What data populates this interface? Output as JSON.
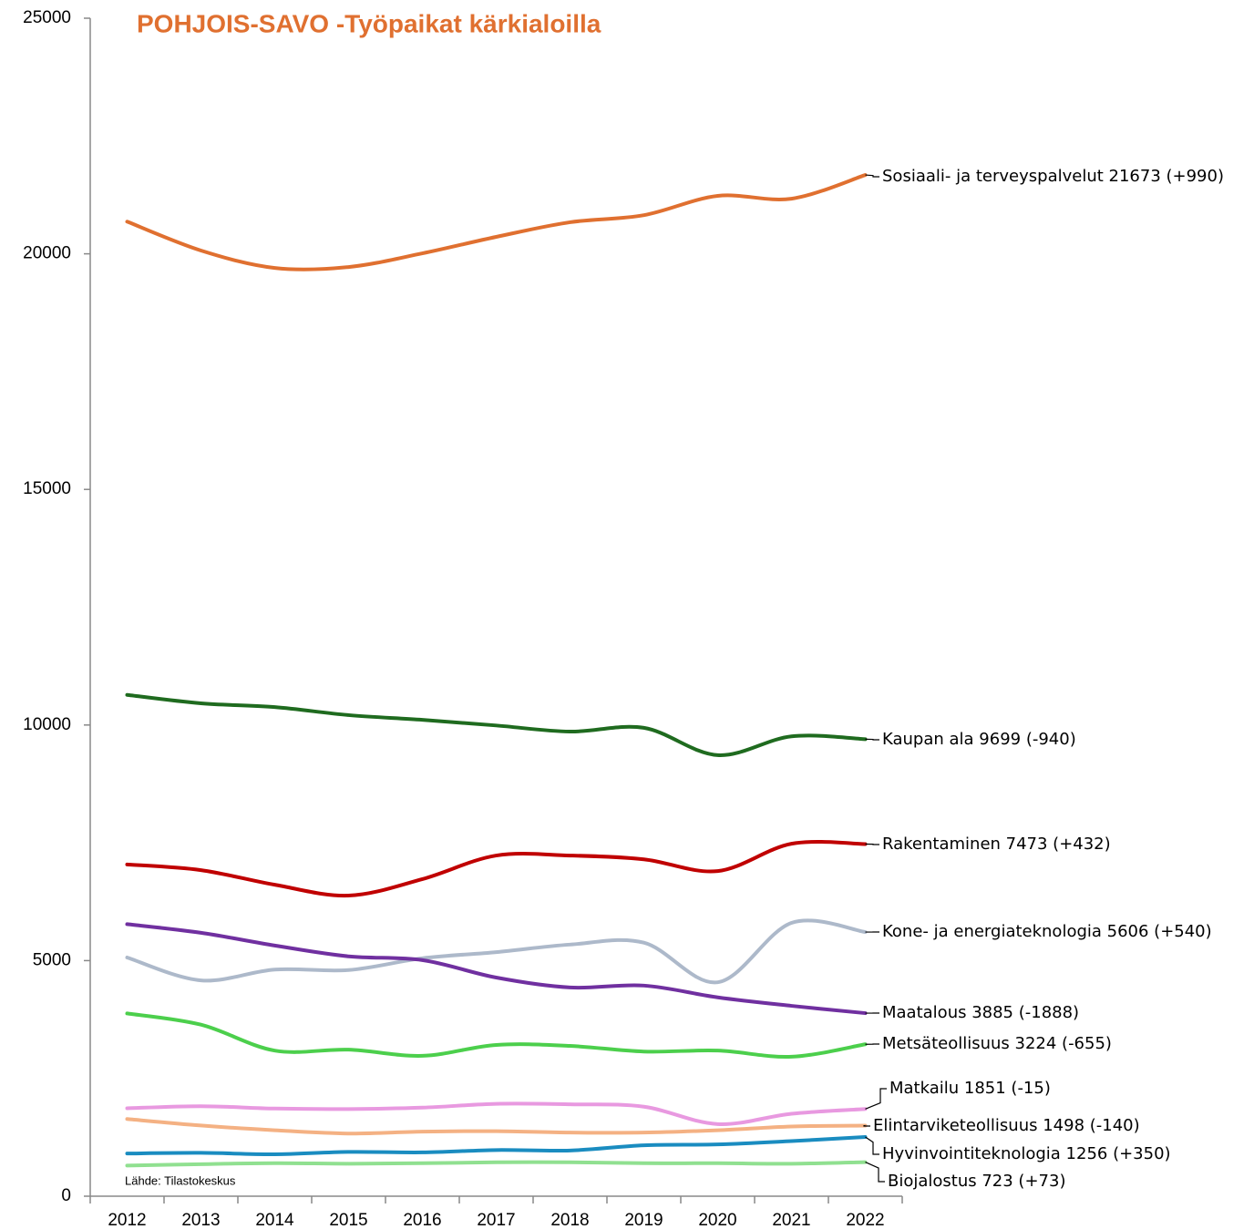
{
  "chart_data": {
    "type": "line",
    "title": "POHJOIS-SAVO -Työpaikat kärkialoilla",
    "source": "Lähde: Tilastokeskus",
    "categories": [
      "2012",
      "2013",
      "2014",
      "2015",
      "2016",
      "2017",
      "2018",
      "2019",
      "2020",
      "2021",
      "2022"
    ],
    "ylim": [
      0,
      25000
    ],
    "yticks": [
      0,
      5000,
      10000,
      15000,
      20000,
      25000
    ],
    "series": [
      {
        "name": "Sosiaali- ja terveyspalvelut 21673 (+990)",
        "color": "#e07030",
        "values": [
          20683,
          20070,
          19700,
          19720,
          20010,
          20360,
          20670,
          20820,
          21230,
          21170,
          21673
        ]
      },
      {
        "name": "Kaupan ala 9699 (-940)",
        "color": "#1f6b1f",
        "values": [
          10639,
          10460,
          10380,
          10210,
          10110,
          9990,
          9860,
          9940,
          9360,
          9760,
          9699
        ]
      },
      {
        "name": "Rakentaminen 7473 (+432)",
        "color": "#c00000",
        "values": [
          7041,
          6920,
          6610,
          6380,
          6730,
          7230,
          7230,
          7150,
          6900,
          7480,
          7473
        ]
      },
      {
        "name": "Kone- ja energiateknologia 5606 (+540)",
        "color": "#adb9ca",
        "values": [
          5066,
          4580,
          4810,
          4800,
          5050,
          5180,
          5340,
          5380,
          4540,
          5800,
          5606
        ]
      },
      {
        "name": "Maatalous 3885 (-1888)",
        "color": "#7030a0",
        "values": [
          5773,
          5590,
          5320,
          5090,
          5010,
          4640,
          4430,
          4470,
          4220,
          4040,
          3885
        ]
      },
      {
        "name": "Metsäteollisuus 3224 (-655)",
        "color": "#4ccf4c",
        "values": [
          3879,
          3640,
          3090,
          3110,
          2980,
          3210,
          3190,
          3070,
          3090,
          2960,
          3224
        ]
      },
      {
        "name": "Matkailu 1851 (-15)",
        "color": "#e899e0",
        "values": [
          1866,
          1910,
          1860,
          1850,
          1880,
          1960,
          1950,
          1900,
          1530,
          1750,
          1851
        ]
      },
      {
        "name": "Elintarviketeollisuus 1498 (-140)",
        "color": "#f4b183",
        "values": [
          1638,
          1500,
          1400,
          1330,
          1370,
          1380,
          1350,
          1350,
          1400,
          1480,
          1498
        ]
      },
      {
        "name": "Hyvinvointiteknologia 1256 (+350)",
        "color": "#1a8cc0",
        "values": [
          906,
          920,
          890,
          940,
          930,
          980,
          970,
          1080,
          1100,
          1170,
          1256
        ]
      },
      {
        "name": "Biojalostus 723 (+73)",
        "color": "#90e090",
        "values": [
          650,
          680,
          700,
          690,
          700,
          720,
          720,
          700,
          700,
          690,
          723
        ]
      }
    ]
  }
}
